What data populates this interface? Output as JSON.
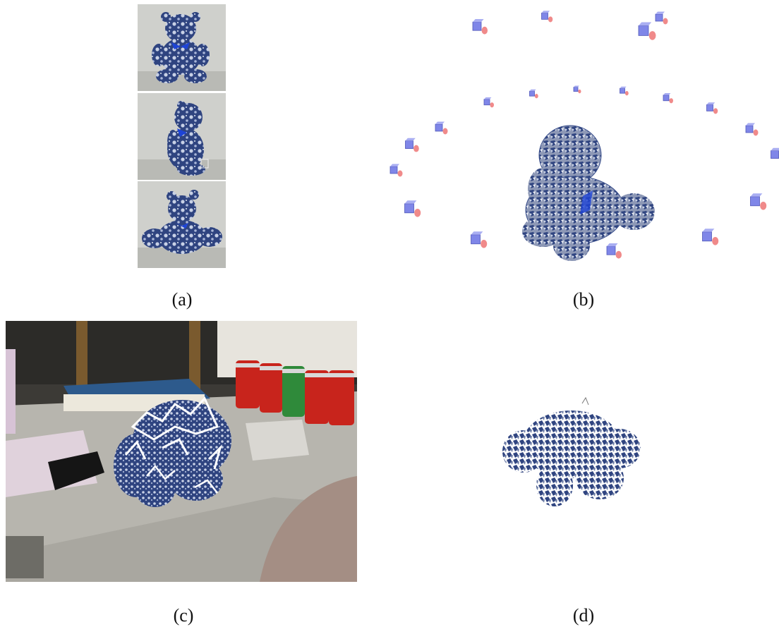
{
  "figure": {
    "panels": [
      {
        "id": "a",
        "label": "(a)"
      },
      {
        "id": "b",
        "label": "(b)"
      },
      {
        "id": "c",
        "label": "(c)"
      },
      {
        "id": "d",
        "label": "(d)"
      }
    ]
  },
  "colors": {
    "fabric_blue": "#3a4f8c",
    "fabric_light": "#c9d2e6",
    "camera_blue": "#7f86e8",
    "camera_cone": "#f08a8a",
    "can_red": "#c8241c",
    "can_green": "#2f8a3a",
    "book_blue": "#2d5a8c",
    "table_gray": "#b8b6b0"
  }
}
